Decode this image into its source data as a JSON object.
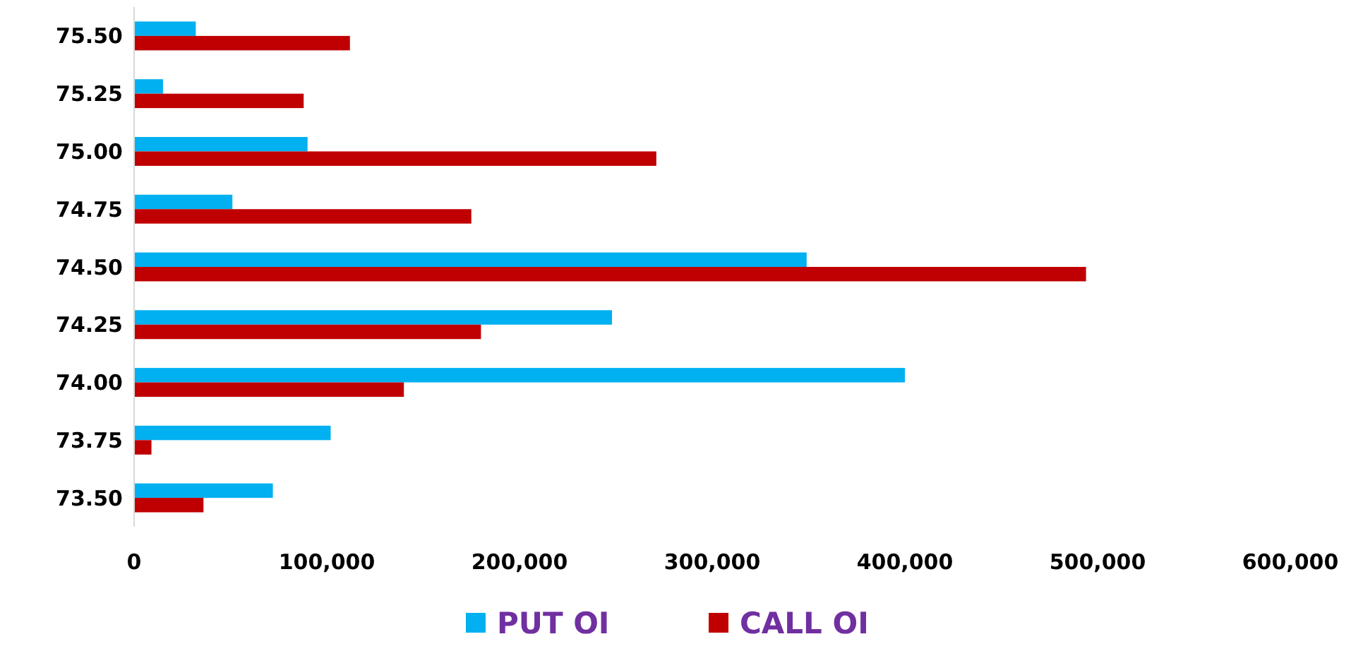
{
  "chart_data": {
    "type": "bar",
    "orientation": "horizontal",
    "categories": [
      "75.50",
      "75.25",
      "75.00",
      "74.75",
      "74.50",
      "74.25",
      "74.00",
      "73.75",
      "73.50"
    ],
    "series": [
      {
        "name": "PUT OI",
        "color": "#00b0f0",
        "values": [
          32000,
          15000,
          90000,
          51000,
          349000,
          248000,
          400000,
          102000,
          72000
        ]
      },
      {
        "name": "CALL OI",
        "color": "#c00000",
        "values": [
          112000,
          88000,
          271000,
          175000,
          494000,
          180000,
          140000,
          9000,
          36000
        ]
      }
    ],
    "xlim": [
      0,
      600000
    ],
    "xticks": [
      {
        "value": 0,
        "label": "0"
      },
      {
        "value": 100000,
        "label": "100,000"
      },
      {
        "value": 200000,
        "label": "200,000"
      },
      {
        "value": 300000,
        "label": "300,000"
      },
      {
        "value": 400000,
        "label": "400,000"
      },
      {
        "value": 500000,
        "label": "500,000"
      },
      {
        "value": 600000,
        "label": "600,000"
      }
    ],
    "grid": false,
    "legend": "bottom"
  }
}
